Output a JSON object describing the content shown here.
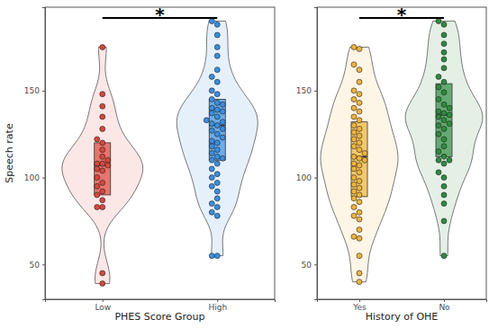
{
  "chart_data": [
    {
      "type": "violin",
      "x_label": "PHES Score Group",
      "y_label": "Speech rate",
      "annotation": "*",
      "categories": [
        "Low",
        "High"
      ],
      "colors": [
        "#d9463b",
        "#3a8ee0"
      ],
      "ylim": [
        30,
        198
      ],
      "yticks": [
        50,
        100,
        150
      ],
      "quartiles": [
        [
          90,
          107,
          120
        ],
        [
          110,
          130,
          145
        ]
      ],
      "values": [
        [
          175,
          148,
          141,
          135,
          128,
          122,
          120,
          116,
          112,
          110,
          108,
          108,
          107,
          105,
          104,
          100,
          97,
          95,
          92,
          90,
          87,
          83,
          83,
          45,
          39
        ],
        [
          190,
          188,
          182,
          175,
          170,
          162,
          158,
          155,
          150,
          148,
          145,
          143,
          142,
          140,
          139,
          138,
          137,
          135,
          133,
          132,
          131,
          130,
          128,
          127,
          125,
          123,
          121,
          120,
          118,
          116,
          114,
          112,
          111,
          110,
          108,
          105,
          102,
          100,
          97,
          95,
          92,
          88,
          85,
          83,
          80,
          78,
          55,
          55
        ]
      ]
    },
    {
      "type": "violin",
      "x_label": "History of OHE",
      "annotation": "*",
      "categories": [
        "Yes",
        "No"
      ],
      "colors": [
        "#f0b43c",
        "#2e8b3e"
      ],
      "ylim": [
        30,
        198
      ],
      "yticks": [
        50,
        100,
        150
      ],
      "quartiles": [
        [
          89,
          112,
          132
        ],
        [
          112,
          136,
          154
        ]
      ],
      "values": [
        [
          175,
          174,
          165,
          162,
          155,
          150,
          148,
          145,
          143,
          140,
          138,
          135,
          133,
          130,
          128,
          126,
          124,
          122,
          120,
          118,
          116,
          114,
          112,
          111,
          110,
          108,
          107,
          105,
          103,
          100,
          98,
          96,
          94,
          92,
          90,
          88,
          86,
          83,
          80,
          78,
          76,
          70,
          66,
          65,
          55,
          45,
          40
        ],
        [
          190,
          188,
          182,
          177,
          172,
          168,
          163,
          158,
          155,
          152,
          149,
          145,
          142,
          140,
          138,
          137,
          136,
          135,
          133,
          131,
          130,
          128,
          125,
          122,
          118,
          115,
          112,
          110,
          110,
          108,
          103,
          100,
          95,
          90,
          85,
          75,
          55
        ]
      ]
    }
  ]
}
